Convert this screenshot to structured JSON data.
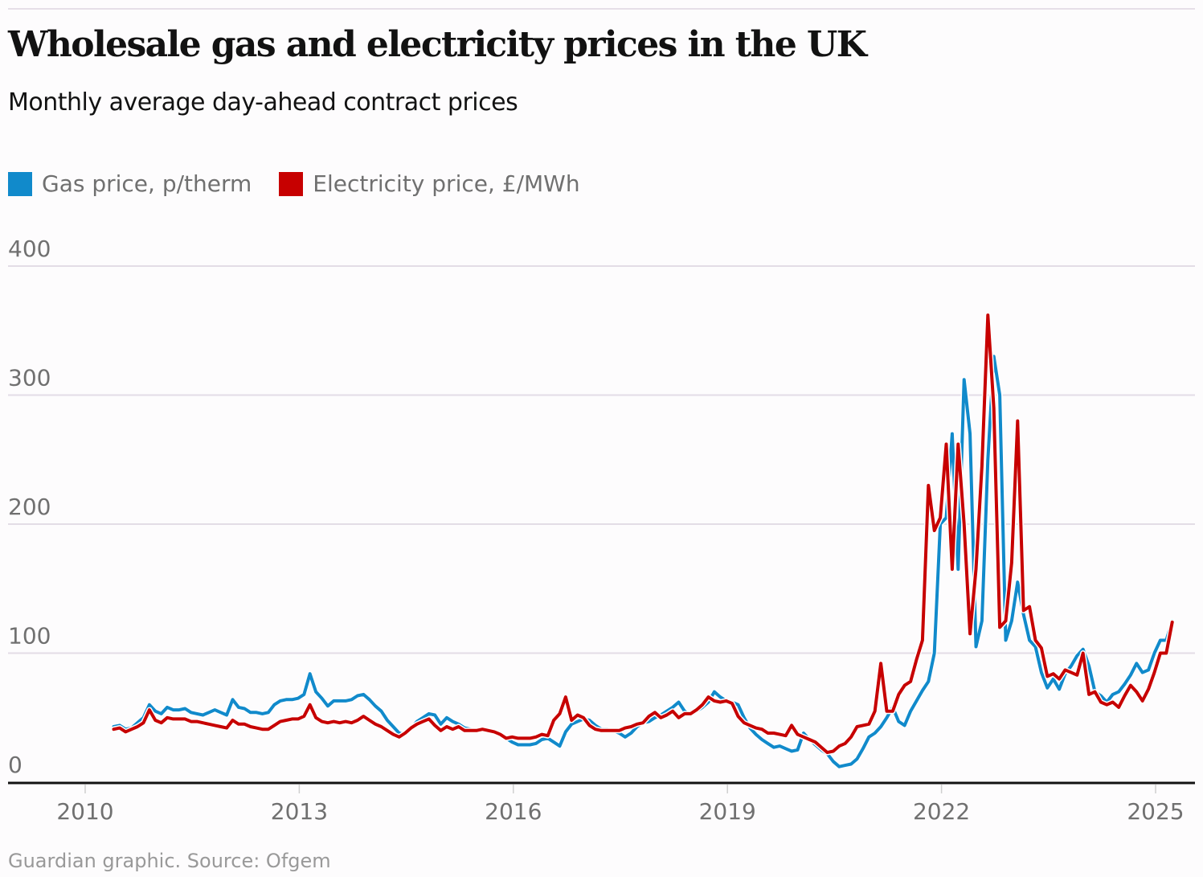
{
  "header": {
    "title": "Wholesale gas and electricity prices in the UK",
    "subtitle": "Monthly average day-ahead contract prices"
  },
  "legend": [
    {
      "label": "Gas price, p/therm",
      "color": "#118acb"
    },
    {
      "label": "Electricity price, £/MWh",
      "color": "#c70000"
    }
  ],
  "footer": "Guardian graphic. Source: Ofgem",
  "chart_data": {
    "type": "line",
    "title": "Wholesale gas and electricity prices in the UK",
    "subtitle": "Monthly average day-ahead contract prices",
    "xlabel": "",
    "ylabel": "",
    "xlim": [
      2010,
      2025.3
    ],
    "ylim": [
      0,
      400
    ],
    "yticks": [
      0,
      100,
      200,
      300,
      400
    ],
    "xticks": [
      2010,
      2013,
      2016,
      2019,
      2022,
      2025
    ],
    "grid": true,
    "legend_position": "top-left",
    "x_start": 2010.4,
    "x_step_months": 1,
    "series": [
      {
        "name": "Gas price, p/therm",
        "color": "#118acb",
        "values": [
          43,
          44,
          41,
          42,
          46,
          50,
          60,
          55,
          53,
          58,
          56,
          56,
          57,
          54,
          53,
          52,
          54,
          56,
          54,
          52,
          64,
          58,
          57,
          54,
          54,
          53,
          54,
          60,
          63,
          64,
          64,
          65,
          68,
          84,
          70,
          65,
          59,
          63,
          63,
          63,
          64,
          67,
          68,
          64,
          59,
          55,
          48,
          43,
          38,
          37,
          42,
          47,
          50,
          53,
          52,
          45,
          50,
          47,
          45,
          42,
          41,
          40,
          41,
          40,
          39,
          38,
          34,
          31,
          29,
          29,
          29,
          30,
          33,
          34,
          31,
          28,
          39,
          45,
          47,
          49,
          48,
          44,
          41,
          41,
          40,
          38,
          35,
          38,
          43,
          46,
          47,
          50,
          52,
          55,
          58,
          62,
          55,
          52,
          55,
          58,
          62,
          70,
          66,
          63,
          62,
          60,
          50,
          42,
          37,
          33,
          30,
          27,
          28,
          26,
          24,
          25,
          38,
          33,
          29,
          25,
          22,
          16,
          12,
          13,
          14,
          18,
          26,
          35,
          38,
          43,
          50,
          58,
          47,
          44,
          55,
          63,
          71,
          78,
          100,
          200,
          205,
          270,
          165,
          312,
          270,
          105,
          125,
          250,
          330,
          300,
          110,
          125,
          155,
          130,
          110,
          105,
          85,
          73,
          80,
          72,
          84,
          90,
          98,
          103,
          90,
          70,
          67,
          62,
          68,
          70,
          76,
          83,
          92,
          85,
          87,
          100,
          110,
          110,
          125
        ]
      },
      {
        "name": "Electricity price, £/MWh",
        "color": "#c70000",
        "values": [
          41,
          42,
          39,
          41,
          43,
          46,
          56,
          48,
          46,
          50,
          49,
          49,
          49,
          47,
          47,
          46,
          45,
          44,
          43,
          42,
          48,
          45,
          45,
          43,
          42,
          41,
          41,
          44,
          47,
          48,
          49,
          49,
          51,
          60,
          50,
          47,
          46,
          47,
          46,
          47,
          46,
          48,
          51,
          48,
          45,
          43,
          40,
          37,
          35,
          38,
          42,
          45,
          47,
          49,
          44,
          40,
          43,
          41,
          43,
          40,
          40,
          40,
          41,
          40,
          39,
          37,
          34,
          35,
          34,
          34,
          34,
          35,
          37,
          36,
          48,
          53,
          66,
          48,
          52,
          50,
          44,
          41,
          40,
          40,
          40,
          40,
          42,
          43,
          45,
          46,
          51,
          54,
          50,
          52,
          55,
          50,
          53,
          53,
          56,
          60,
          66,
          63,
          62,
          63,
          61,
          51,
          46,
          44,
          42,
          41,
          38,
          38,
          37,
          36,
          44,
          37,
          35,
          33,
          31,
          27,
          23,
          24,
          28,
          30,
          35,
          43,
          44,
          45,
          55,
          92,
          55,
          55,
          68,
          75,
          78,
          95,
          110,
          230,
          195,
          205,
          262,
          165,
          262,
          200,
          115,
          165,
          245,
          362,
          290,
          120,
          125,
          170,
          280,
          133,
          136,
          110,
          104,
          82,
          84,
          80,
          87,
          85,
          83,
          100,
          68,
          70,
          62,
          60,
          62,
          58,
          67,
          75,
          70,
          63,
          72,
          85,
          100,
          100,
          124
        ]
      }
    ]
  }
}
